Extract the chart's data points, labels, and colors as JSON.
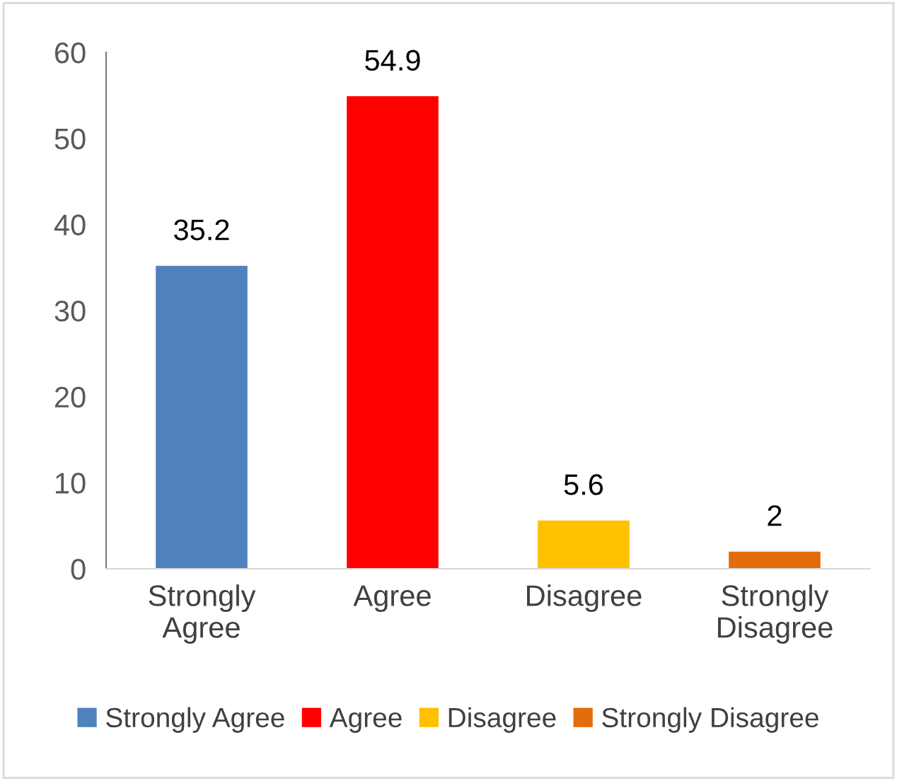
{
  "chart_data": {
    "type": "bar",
    "categories": [
      "Strongly\nAgree",
      "Agree",
      "Disagree",
      "Strongly\nDisagree"
    ],
    "series": [
      {
        "name": "Strongly Agree",
        "color": "#4f81bd",
        "values": [
          35.2,
          null,
          null,
          null
        ]
      },
      {
        "name": "Agree",
        "color": "#ff0000",
        "values": [
          null,
          54.9,
          null,
          null
        ]
      },
      {
        "name": "Disagree",
        "color": "#ffc000",
        "values": [
          null,
          null,
          5.6,
          null
        ]
      },
      {
        "name": "Strongly Disagree",
        "color": "#e46c0a",
        "values": [
          null,
          null,
          null,
          2
        ]
      }
    ],
    "ylim": [
      0,
      60
    ],
    "yticks": [
      0,
      10,
      20,
      30,
      40,
      50,
      60
    ],
    "grid": false,
    "legend": "bottom",
    "data_labels": true
  }
}
